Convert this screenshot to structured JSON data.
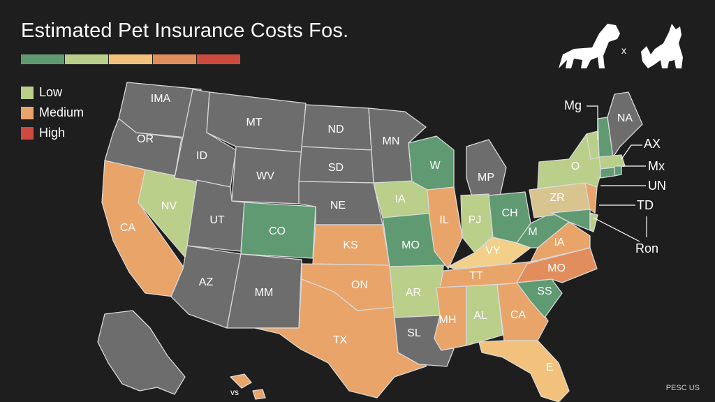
{
  "title": "Estimated Pet Insurance Costs Fos.",
  "colors": {
    "low": "#b9cf8a",
    "low_green": "#5f9a72",
    "medium": "#e9a46a",
    "high": "#cc4b3e",
    "neutral": "#6d6d6d",
    "background": "#1e1e1e",
    "scale": [
      "#5f9a72",
      "#b9cf8a",
      "#f2c27d",
      "#e28e5c",
      "#cc4b3e"
    ]
  },
  "legend": [
    {
      "label": "Low",
      "color": "#b9cf8a"
    },
    {
      "label": "Medium",
      "color": "#e9a46a"
    },
    {
      "label": "High",
      "color": "#cc4b3e"
    }
  ],
  "pets": {
    "separator": "x",
    "icons": [
      "dog-icon",
      "cat-icon"
    ]
  },
  "states": {
    "wa": "IMA",
    "or": "OR",
    "ca": "CA",
    "nv": "NV",
    "id": "ID",
    "mt": "MT",
    "wy": "WV",
    "ut": "UT",
    "az": "AZ",
    "co": "CO",
    "nm": "MM",
    "nd": "ND",
    "sd": "SD",
    "ne": "NE",
    "ks": "KS",
    "ok": "ON",
    "tx": "TX",
    "mn": "MN",
    "ia": "IA",
    "mo": "MO",
    "ar": "AR",
    "la": "SL",
    "wi": "W",
    "il": "IL",
    "mi": "MP",
    "in": "PJ",
    "oh": "CH",
    "ky": "VY",
    "tn": "TT",
    "ms": "MH",
    "al": "AL",
    "ga": "CA",
    "fl": "E",
    "sc": "SS",
    "nc": "MO",
    "va": "IA",
    "wv": "M",
    "pa": "ZR",
    "ny": "O",
    "me": "NA"
  },
  "callouts": [
    "Mg",
    "AX",
    "Mx",
    "UN",
    "TD",
    "Ron"
  ],
  "alaska_label": "vs",
  "footer": "PESC US"
}
